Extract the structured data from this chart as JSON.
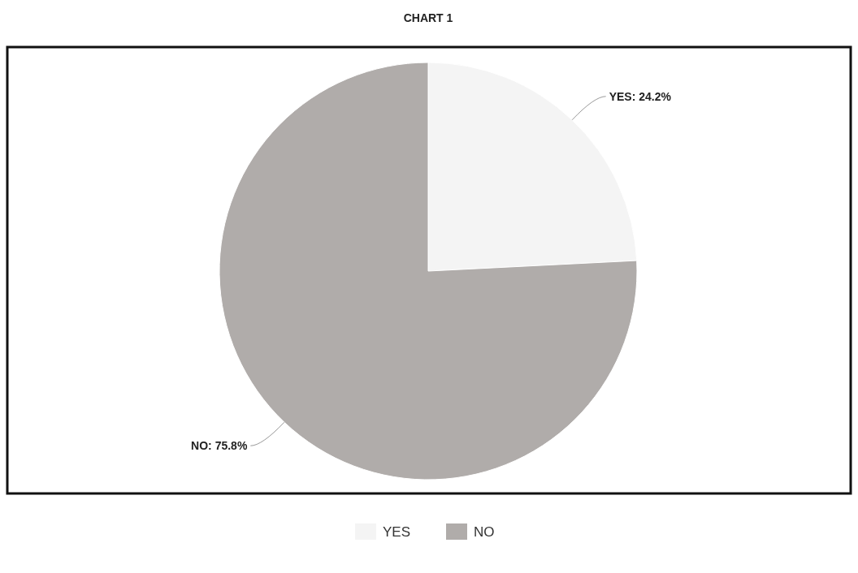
{
  "chart_data": {
    "type": "pie",
    "title": "CHART 1",
    "categories": [
      "YES",
      "NO"
    ],
    "values": [
      24.2,
      75.8
    ],
    "colors": [
      "#f4f4f4",
      "#b0acaa"
    ],
    "value_labels": [
      "YES: 24.2%",
      "NO: 75.8%"
    ],
    "legend": "bottom"
  }
}
